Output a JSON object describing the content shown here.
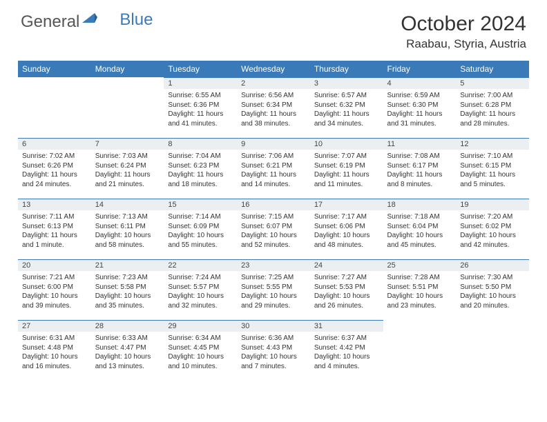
{
  "logo": {
    "text1": "General",
    "text2": "Blue"
  },
  "title": "October 2024",
  "location": "Raabau, Styria, Austria",
  "colors": {
    "header_bg": "#3a7ab8",
    "daynum_bg": "#eceff1",
    "daynum_border": "#3a7ab8",
    "text": "#323232",
    "logo_gray": "#555555",
    "logo_blue": "#3a7ab8",
    "page_bg": "#ffffff"
  },
  "weekdays": [
    "Sunday",
    "Monday",
    "Tuesday",
    "Wednesday",
    "Thursday",
    "Friday",
    "Saturday"
  ],
  "weeks": [
    [
      {
        "empty": true
      },
      {
        "empty": true
      },
      {
        "num": "1",
        "sunrise": "Sunrise: 6:55 AM",
        "sunset": "Sunset: 6:36 PM",
        "daylight": "Daylight: 11 hours and 41 minutes."
      },
      {
        "num": "2",
        "sunrise": "Sunrise: 6:56 AM",
        "sunset": "Sunset: 6:34 PM",
        "daylight": "Daylight: 11 hours and 38 minutes."
      },
      {
        "num": "3",
        "sunrise": "Sunrise: 6:57 AM",
        "sunset": "Sunset: 6:32 PM",
        "daylight": "Daylight: 11 hours and 34 minutes."
      },
      {
        "num": "4",
        "sunrise": "Sunrise: 6:59 AM",
        "sunset": "Sunset: 6:30 PM",
        "daylight": "Daylight: 11 hours and 31 minutes."
      },
      {
        "num": "5",
        "sunrise": "Sunrise: 7:00 AM",
        "sunset": "Sunset: 6:28 PM",
        "daylight": "Daylight: 11 hours and 28 minutes."
      }
    ],
    [
      {
        "num": "6",
        "sunrise": "Sunrise: 7:02 AM",
        "sunset": "Sunset: 6:26 PM",
        "daylight": "Daylight: 11 hours and 24 minutes."
      },
      {
        "num": "7",
        "sunrise": "Sunrise: 7:03 AM",
        "sunset": "Sunset: 6:24 PM",
        "daylight": "Daylight: 11 hours and 21 minutes."
      },
      {
        "num": "8",
        "sunrise": "Sunrise: 7:04 AM",
        "sunset": "Sunset: 6:23 PM",
        "daylight": "Daylight: 11 hours and 18 minutes."
      },
      {
        "num": "9",
        "sunrise": "Sunrise: 7:06 AM",
        "sunset": "Sunset: 6:21 PM",
        "daylight": "Daylight: 11 hours and 14 minutes."
      },
      {
        "num": "10",
        "sunrise": "Sunrise: 7:07 AM",
        "sunset": "Sunset: 6:19 PM",
        "daylight": "Daylight: 11 hours and 11 minutes."
      },
      {
        "num": "11",
        "sunrise": "Sunrise: 7:08 AM",
        "sunset": "Sunset: 6:17 PM",
        "daylight": "Daylight: 11 hours and 8 minutes."
      },
      {
        "num": "12",
        "sunrise": "Sunrise: 7:10 AM",
        "sunset": "Sunset: 6:15 PM",
        "daylight": "Daylight: 11 hours and 5 minutes."
      }
    ],
    [
      {
        "num": "13",
        "sunrise": "Sunrise: 7:11 AM",
        "sunset": "Sunset: 6:13 PM",
        "daylight": "Daylight: 11 hours and 1 minute."
      },
      {
        "num": "14",
        "sunrise": "Sunrise: 7:13 AM",
        "sunset": "Sunset: 6:11 PM",
        "daylight": "Daylight: 10 hours and 58 minutes."
      },
      {
        "num": "15",
        "sunrise": "Sunrise: 7:14 AM",
        "sunset": "Sunset: 6:09 PM",
        "daylight": "Daylight: 10 hours and 55 minutes."
      },
      {
        "num": "16",
        "sunrise": "Sunrise: 7:15 AM",
        "sunset": "Sunset: 6:07 PM",
        "daylight": "Daylight: 10 hours and 52 minutes."
      },
      {
        "num": "17",
        "sunrise": "Sunrise: 7:17 AM",
        "sunset": "Sunset: 6:06 PM",
        "daylight": "Daylight: 10 hours and 48 minutes."
      },
      {
        "num": "18",
        "sunrise": "Sunrise: 7:18 AM",
        "sunset": "Sunset: 6:04 PM",
        "daylight": "Daylight: 10 hours and 45 minutes."
      },
      {
        "num": "19",
        "sunrise": "Sunrise: 7:20 AM",
        "sunset": "Sunset: 6:02 PM",
        "daylight": "Daylight: 10 hours and 42 minutes."
      }
    ],
    [
      {
        "num": "20",
        "sunrise": "Sunrise: 7:21 AM",
        "sunset": "Sunset: 6:00 PM",
        "daylight": "Daylight: 10 hours and 39 minutes."
      },
      {
        "num": "21",
        "sunrise": "Sunrise: 7:23 AM",
        "sunset": "Sunset: 5:58 PM",
        "daylight": "Daylight: 10 hours and 35 minutes."
      },
      {
        "num": "22",
        "sunrise": "Sunrise: 7:24 AM",
        "sunset": "Sunset: 5:57 PM",
        "daylight": "Daylight: 10 hours and 32 minutes."
      },
      {
        "num": "23",
        "sunrise": "Sunrise: 7:25 AM",
        "sunset": "Sunset: 5:55 PM",
        "daylight": "Daylight: 10 hours and 29 minutes."
      },
      {
        "num": "24",
        "sunrise": "Sunrise: 7:27 AM",
        "sunset": "Sunset: 5:53 PM",
        "daylight": "Daylight: 10 hours and 26 minutes."
      },
      {
        "num": "25",
        "sunrise": "Sunrise: 7:28 AM",
        "sunset": "Sunset: 5:51 PM",
        "daylight": "Daylight: 10 hours and 23 minutes."
      },
      {
        "num": "26",
        "sunrise": "Sunrise: 7:30 AM",
        "sunset": "Sunset: 5:50 PM",
        "daylight": "Daylight: 10 hours and 20 minutes."
      }
    ],
    [
      {
        "num": "27",
        "sunrise": "Sunrise: 6:31 AM",
        "sunset": "Sunset: 4:48 PM",
        "daylight": "Daylight: 10 hours and 16 minutes."
      },
      {
        "num": "28",
        "sunrise": "Sunrise: 6:33 AM",
        "sunset": "Sunset: 4:47 PM",
        "daylight": "Daylight: 10 hours and 13 minutes."
      },
      {
        "num": "29",
        "sunrise": "Sunrise: 6:34 AM",
        "sunset": "Sunset: 4:45 PM",
        "daylight": "Daylight: 10 hours and 10 minutes."
      },
      {
        "num": "30",
        "sunrise": "Sunrise: 6:36 AM",
        "sunset": "Sunset: 4:43 PM",
        "daylight": "Daylight: 10 hours and 7 minutes."
      },
      {
        "num": "31",
        "sunrise": "Sunrise: 6:37 AM",
        "sunset": "Sunset: 4:42 PM",
        "daylight": "Daylight: 10 hours and 4 minutes."
      },
      {
        "empty": true
      },
      {
        "empty": true
      }
    ]
  ]
}
